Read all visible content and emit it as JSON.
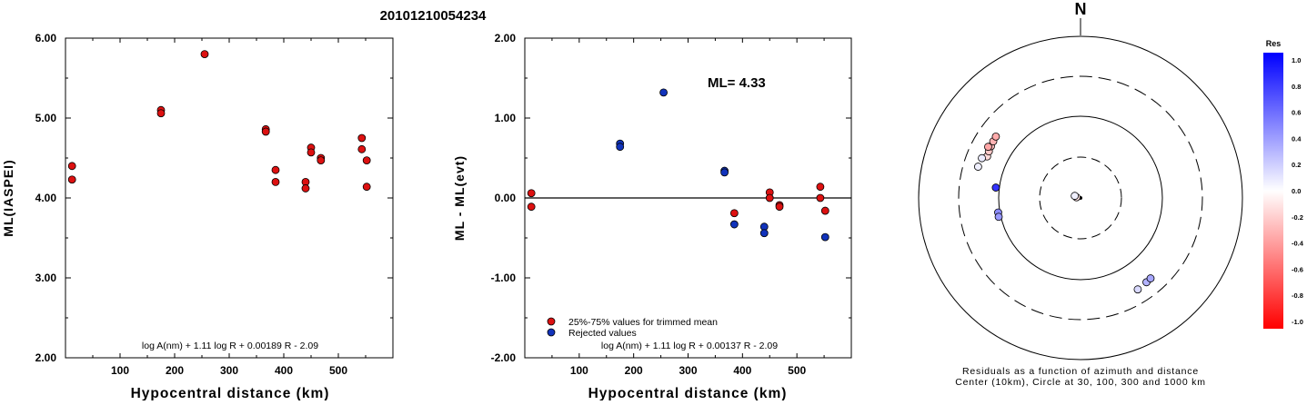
{
  "title": "20101210054234",
  "chart_data": [
    {
      "type": "scatter",
      "xlabel": "Hypocentral distance (km)",
      "ylabel": "ML(IASPEI)",
      "xlim": [
        0,
        600
      ],
      "ylim": [
        2.0,
        6.0
      ],
      "x_ticks": [
        "100",
        "200",
        "300",
        "400",
        "500"
      ],
      "y_ticks": [
        "2.00",
        "3.00",
        "4.00",
        "5.00",
        "6.00"
      ],
      "formula": "log A(nm) + 1.11 log R + 0.00189 R - 2.09",
      "series": [
        {
          "color": "#dd1111",
          "points": [
            [
              12,
              4.4
            ],
            [
              12,
              4.23
            ],
            [
              175,
              5.1
            ],
            [
              175,
              5.06
            ],
            [
              255,
              5.8
            ],
            [
              367,
              4.86
            ],
            [
              367,
              4.83
            ],
            [
              385,
              4.35
            ],
            [
              385,
              4.2
            ],
            [
              440,
              4.2
            ],
            [
              440,
              4.12
            ],
            [
              450,
              4.63
            ],
            [
              450,
              4.57
            ],
            [
              468,
              4.5
            ],
            [
              468,
              4.47
            ],
            [
              543,
              4.75
            ],
            [
              543,
              4.61
            ],
            [
              552,
              4.47
            ],
            [
              552,
              4.14
            ]
          ]
        }
      ]
    },
    {
      "type": "scatter",
      "xlabel": "Hypocentral distance (km)",
      "ylabel": "ML - ML(evt)",
      "xlim": [
        0,
        600
      ],
      "ylim": [
        -2.0,
        2.0
      ],
      "x_ticks": [
        "100",
        "200",
        "300",
        "400",
        "500"
      ],
      "y_ticks": [
        "-2.00",
        "-1.00",
        "0.00",
        "1.00",
        "2.00"
      ],
      "annotation": "ML= 4.33",
      "formula": "log A(nm) + 1.11 log R + 0.00137 R - 2.09",
      "legend": [
        {
          "label": "25%-75% values for trimmed mean",
          "color": "#dd1111"
        },
        {
          "label": "Rejected values",
          "color": "#1133bb"
        }
      ],
      "series": [
        {
          "name": "25%-75% values for trimmed mean",
          "color": "#dd1111",
          "points": [
            [
              12,
              0.06
            ],
            [
              12,
              -0.11
            ],
            [
              385,
              -0.19
            ],
            [
              450,
              0.07
            ],
            [
              450,
              0.0
            ],
            [
              468,
              -0.09
            ],
            [
              468,
              -0.11
            ],
            [
              543,
              0.14
            ],
            [
              543,
              0.0
            ],
            [
              552,
              -0.16
            ]
          ]
        },
        {
          "name": "Rejected values",
          "color": "#1133bb",
          "points": [
            [
              175,
              0.68
            ],
            [
              175,
              0.64
            ],
            [
              255,
              1.32
            ],
            [
              367,
              0.34
            ],
            [
              367,
              0.32
            ],
            [
              385,
              -0.33
            ],
            [
              440,
              -0.36
            ],
            [
              440,
              -0.44
            ],
            [
              552,
              -0.49
            ]
          ]
        }
      ]
    },
    {
      "type": "scatter",
      "subtype": "polar",
      "north_label": "N",
      "caption_line1": "Residuals as a function of azimuth and distance",
      "caption_line2": "Center (10km), Circle at 30, 100, 300 and 1000 km",
      "rings_km": [
        30,
        100,
        300,
        1000
      ],
      "colorbar": {
        "title": "Res",
        "ticks": [
          "1.0",
          "0.8",
          "0.6",
          "0.4",
          "0.2",
          "0.0",
          "-0.2",
          "-0.4",
          "-0.6",
          "-0.8",
          "-1.0"
        ],
        "max_color": "#0000ff",
        "mid_color": "#ffffff",
        "min_color": "#ff0000"
      },
      "points": [
        {
          "az_deg": 280,
          "dist_km": 12,
          "res": -0.11
        },
        {
          "az_deg": 290,
          "dist_km": 13,
          "res": 0.06
        },
        {
          "az_deg": 294,
          "dist_km": 175,
          "res": -0.15
        },
        {
          "az_deg": 297,
          "dist_km": 178,
          "res": -0.22
        },
        {
          "az_deg": 300,
          "dist_km": 181,
          "res": -0.28
        },
        {
          "az_deg": 303,
          "dist_km": 184,
          "res": -0.3
        },
        {
          "az_deg": 306,
          "dist_km": 187,
          "res": -0.33
        },
        {
          "az_deg": 299,
          "dist_km": 192,
          "res": -0.35
        },
        {
          "az_deg": 292,
          "dist_km": 196,
          "res": 0.08
        },
        {
          "az_deg": 287,
          "dist_km": 200,
          "res": 0.06
        },
        {
          "az_deg": 277,
          "dist_km": 110,
          "res": 0.8
        },
        {
          "az_deg": 260,
          "dist_km": 105,
          "res": 0.45
        },
        {
          "az_deg": 257,
          "dist_km": 106,
          "res": 0.4
        },
        {
          "az_deg": 148,
          "dist_km": 205,
          "res": 0.15
        },
        {
          "az_deg": 142,
          "dist_km": 200,
          "res": 0.3
        },
        {
          "az_deg": 139,
          "dist_km": 198,
          "res": 0.35
        }
      ]
    }
  ]
}
